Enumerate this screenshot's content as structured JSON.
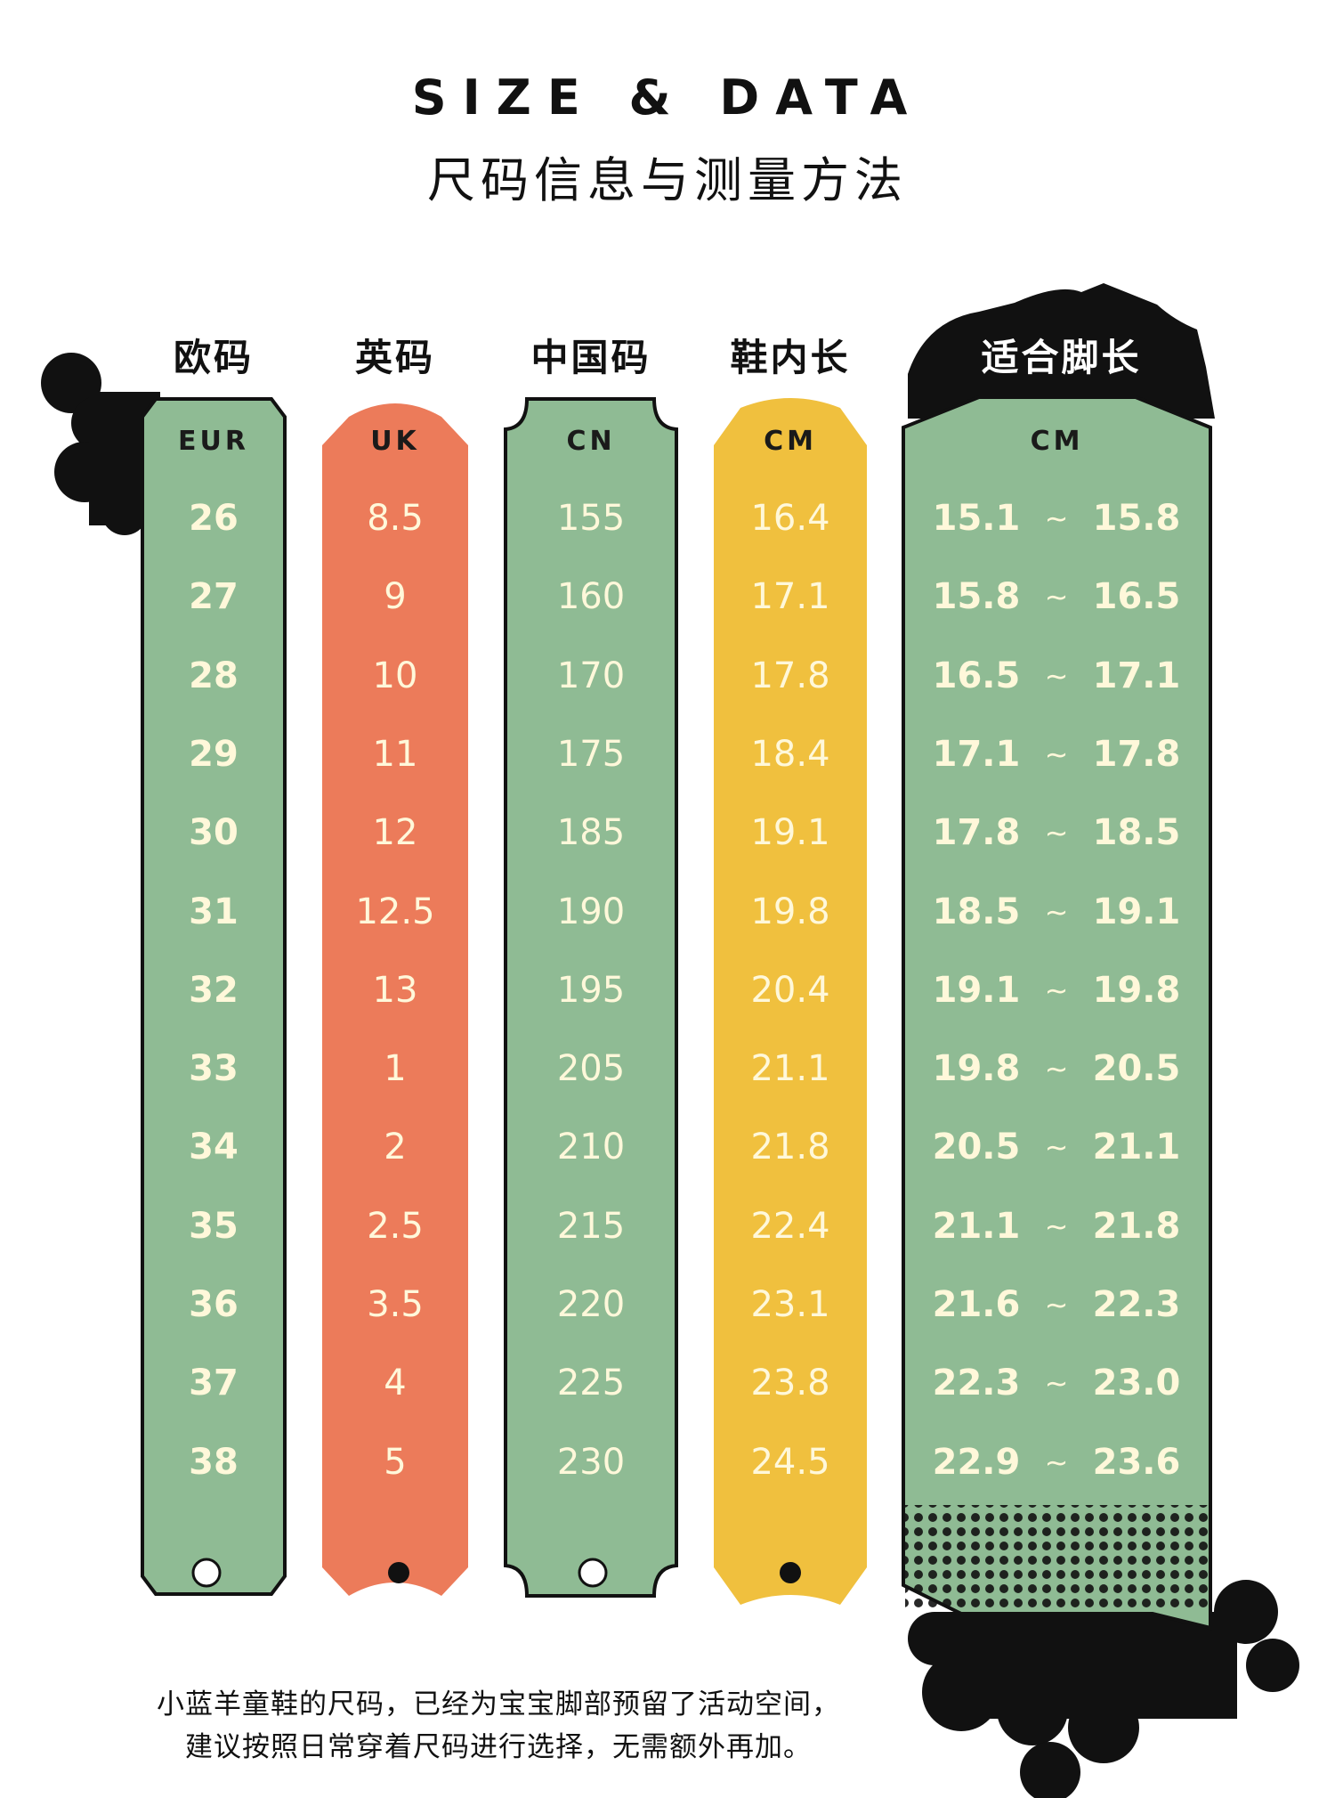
{
  "title": {
    "en": "SIZE & DATA",
    "cn": "尺码信息与测量方法"
  },
  "colors": {
    "green": "#8fbb94",
    "orange": "#ec7b5a",
    "yellow": "#f0c03e",
    "ink": "#111111",
    "digits": "#fff8da"
  },
  "columns": [
    {
      "header": "欧码",
      "unit": "EUR",
      "values": [
        "26",
        "27",
        "28",
        "29",
        "30",
        "31",
        "32",
        "33",
        "34",
        "35",
        "36",
        "37",
        "38"
      ]
    },
    {
      "header": "英码",
      "unit": "UK",
      "values": [
        "8.5",
        "9",
        "10",
        "11",
        "12",
        "12.5",
        "13",
        "1",
        "2",
        "2.5",
        "3.5",
        "4",
        "5"
      ]
    },
    {
      "header": "中国码",
      "unit": "CN",
      "values": [
        "155",
        "160",
        "170",
        "175",
        "185",
        "190",
        "195",
        "205",
        "210",
        "215",
        "220",
        "225",
        "230"
      ]
    },
    {
      "header": "鞋内长",
      "unit": "CM",
      "values": [
        "16.4",
        "17.1",
        "17.8",
        "18.4",
        "19.1",
        "19.8",
        "20.4",
        "21.1",
        "21.8",
        "22.4",
        "23.1",
        "23.8",
        "24.5"
      ]
    }
  ],
  "foot_length": {
    "header": "适合脚长",
    "unit": "CM",
    "separator": "~",
    "ranges": [
      [
        "15.1",
        "15.8"
      ],
      [
        "15.8",
        "16.5"
      ],
      [
        "16.5",
        "17.1"
      ],
      [
        "17.1",
        "17.8"
      ],
      [
        "17.8",
        "18.5"
      ],
      [
        "18.5",
        "19.1"
      ],
      [
        "19.1",
        "19.8"
      ],
      [
        "19.8",
        "20.5"
      ],
      [
        "20.5",
        "21.1"
      ],
      [
        "21.1",
        "21.8"
      ],
      [
        "21.6",
        "22.3"
      ],
      [
        "22.3",
        "23.0"
      ],
      [
        "22.9",
        "23.6"
      ]
    ]
  },
  "note": {
    "line1": "小蓝羊童鞋的尺码，已经为宝宝脚部预留了活动空间，",
    "line2": "建议按照日常穿着尺码进行选择，无需额外再加。"
  }
}
